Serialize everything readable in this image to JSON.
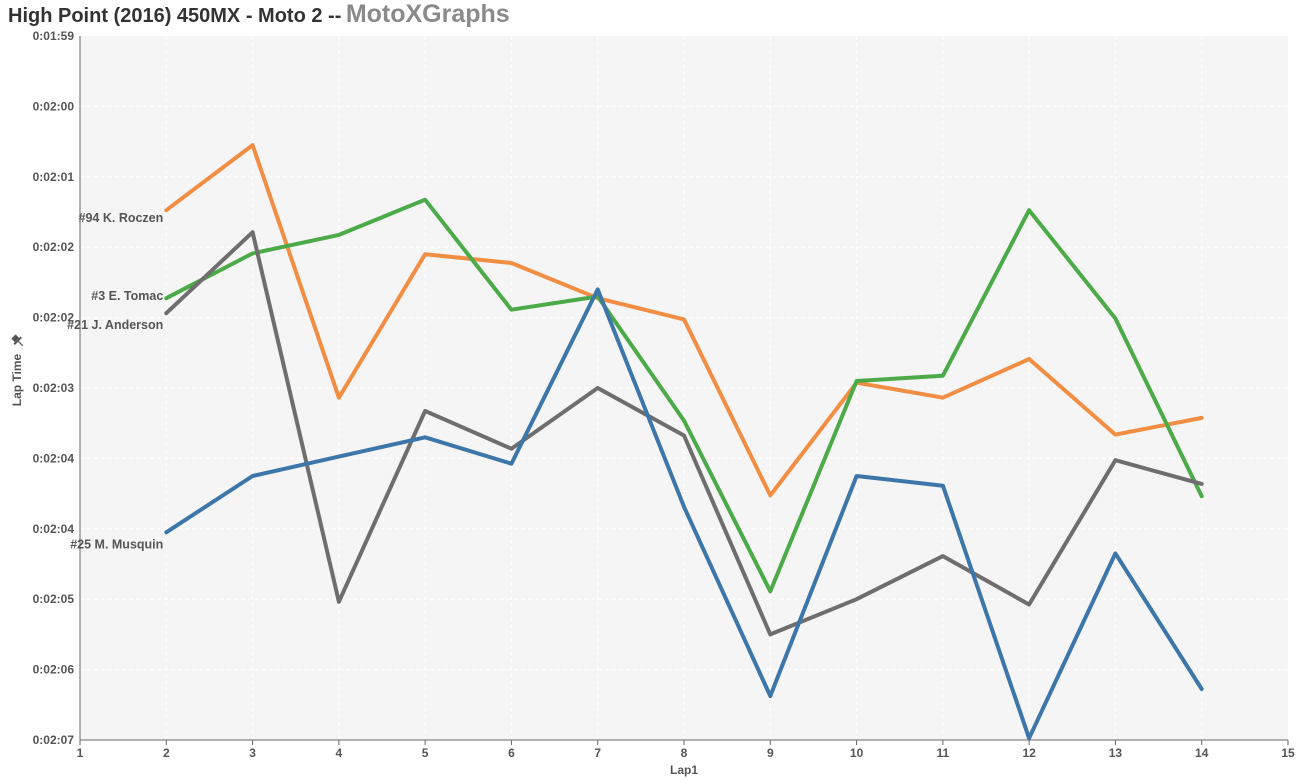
{
  "title": "High Point (2016) 450MX - Moto 2 --",
  "brand": "MotoXGraphs",
  "colors": {
    "plot_bg": "#f5f5f5",
    "axis": "#666666"
  },
  "chart_data": {
    "type": "line",
    "xlabel": "Lap1",
    "ylabel": "Lap Time",
    "ylabel_icon": "pin-icon",
    "xlim": [
      1,
      15
    ],
    "x_ticks": [
      "1",
      "2",
      "3",
      "4",
      "5",
      "6",
      "7",
      "8",
      "9",
      "10",
      "11",
      "12",
      "13",
      "14",
      "15"
    ],
    "ylim_seconds": [
      119,
      127
    ],
    "y_ticks": [
      "0:01:59",
      "0:02:00",
      "0:02:01",
      "0:02:02",
      "0:02:02",
      "0:02:03",
      "0:02:04",
      "0:02:04",
      "0:02:05",
      "0:02:06",
      "0:02:07"
    ],
    "y_axis_reversed": true,
    "grid": true,
    "series": [
      {
        "name": "#94 K. Roczen",
        "color": "#f28e43",
        "x": [
          2,
          3,
          4,
          5,
          6,
          7,
          8,
          9,
          10,
          11,
          12,
          13,
          14
        ],
        "y_seconds": [
          120.98,
          120.24,
          123.11,
          121.48,
          121.58,
          121.98,
          122.22,
          124.22,
          122.94,
          123.11,
          122.67,
          123.53,
          123.34
        ]
      },
      {
        "name": "#3 E. Tomac",
        "color": "#4caa48",
        "x": [
          2,
          3,
          4,
          5,
          6,
          7,
          8,
          9,
          10,
          11,
          12,
          13,
          14
        ],
        "y_seconds": [
          121.98,
          121.47,
          121.26,
          120.86,
          122.11,
          121.96,
          123.37,
          125.31,
          122.92,
          122.86,
          120.98,
          122.21,
          124.23
        ]
      },
      {
        "name": "#21 J. Anderson",
        "color": "#6e6e6e",
        "x": [
          2,
          3,
          4,
          5,
          6,
          7,
          8,
          9,
          10,
          11,
          12,
          13,
          14
        ],
        "y_seconds": [
          122.15,
          121.23,
          125.43,
          123.26,
          123.69,
          123.0,
          123.54,
          125.8,
          125.4,
          124.91,
          125.46,
          123.82,
          124.09
        ]
      },
      {
        "name": "#25 M. Musquin",
        "color": "#3d76a8",
        "x": [
          2,
          3,
          4,
          5,
          6,
          7,
          8,
          9,
          10,
          11,
          12,
          13,
          14
        ],
        "y_seconds": [
          124.64,
          124.0,
          123.78,
          123.56,
          123.86,
          121.88,
          124.35,
          126.5,
          124.0,
          124.11,
          126.98,
          124.88,
          126.42
        ]
      }
    ]
  }
}
